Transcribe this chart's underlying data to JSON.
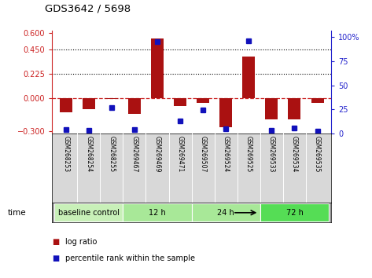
{
  "title": "GDS3642 / 5698",
  "samples": [
    "GSM268253",
    "GSM268254",
    "GSM268255",
    "GSM269467",
    "GSM269469",
    "GSM269471",
    "GSM269507",
    "GSM269524",
    "GSM269525",
    "GSM269533",
    "GSM269534",
    "GSM269535"
  ],
  "log_ratio": [
    -0.13,
    -0.1,
    -0.005,
    -0.14,
    0.55,
    -0.07,
    -0.04,
    -0.26,
    0.38,
    -0.19,
    -0.19,
    -0.04
  ],
  "percentile_rank": [
    4,
    3,
    27,
    4,
    95,
    13,
    24,
    5,
    96,
    3,
    6,
    2
  ],
  "groups": [
    {
      "label": "baseline control",
      "start": 0,
      "end": 3
    },
    {
      "label": "12 h",
      "start": 3,
      "end": 6
    },
    {
      "label": "24 h",
      "start": 6,
      "end": 9
    },
    {
      "label": "72 h",
      "start": 9,
      "end": 12
    }
  ],
  "group_colors": [
    "#c8f0b8",
    "#a8e898",
    "#a8e898",
    "#55dd55"
  ],
  "ylim_left": [
    -0.32,
    0.62
  ],
  "ylim_right": [
    0,
    106.67
  ],
  "yticks_left": [
    -0.3,
    0,
    0.225,
    0.45,
    0.6
  ],
  "yticks_right": [
    0,
    25,
    50,
    75,
    100
  ],
  "hlines": [
    0.45,
    0.225
  ],
  "bar_color": "#aa1111",
  "dot_color": "#1111bb",
  "axis_color_left": "#cc2222",
  "axis_color_right": "#2222cc",
  "zero_line_color": "#cc2222",
  "background_color": "#ffffff",
  "sample_label_bg": "#d8d8d8",
  "bar_width": 0.55
}
